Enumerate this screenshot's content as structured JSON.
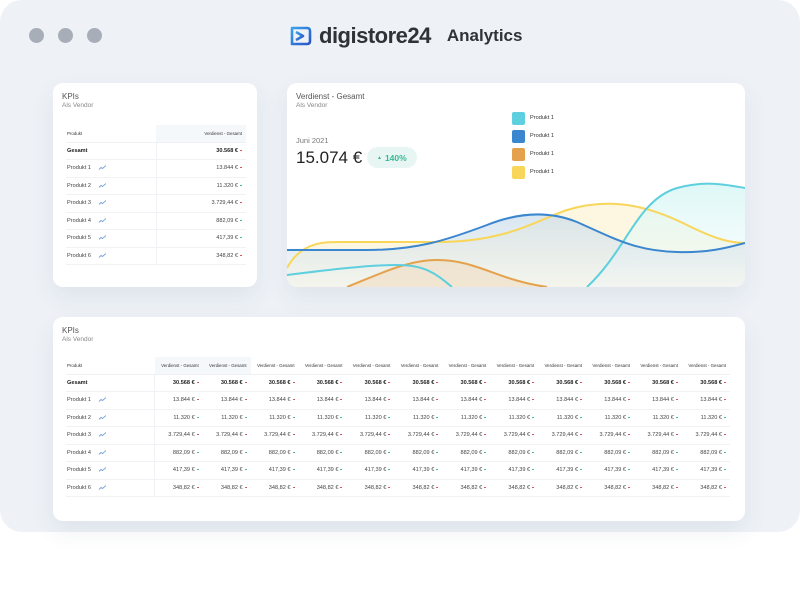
{
  "header": {
    "brand": "digistore24",
    "product": "Analytics",
    "brand_color": "#2f7de1"
  },
  "colors": {
    "up": "#3cc1a0",
    "down": "#e0515a",
    "highlight": "#f5f8fa"
  },
  "kpi_small": {
    "title": "KPIs",
    "subtitle": "Als Vendor",
    "col_product": "Produkt",
    "col_value": "Verdienst - Gesamt",
    "rows": [
      {
        "label": "Gesamt",
        "value": "30.568 €",
        "trend": "down",
        "total": true
      },
      {
        "label": "Produkt 1",
        "value": "13.844 €",
        "trend": "down"
      },
      {
        "label": "Produkt 2",
        "value": "11.320 €",
        "trend": "up"
      },
      {
        "label": "Produkt 3",
        "value": "3.729,44 €",
        "trend": "down"
      },
      {
        "label": "Produkt 4",
        "value": "882,09 €",
        "trend": "up"
      },
      {
        "label": "Produkt 5",
        "value": "417,39 €",
        "trend": "up"
      },
      {
        "label": "Produkt 6",
        "value": "348,82 €",
        "trend": "down"
      }
    ]
  },
  "earnings": {
    "title": "Verdienst - Gesamt",
    "subtitle": "Als Vendor",
    "period": "Juni 2021",
    "amount": "15.074 €",
    "change": "140%",
    "change_direction": "up",
    "legend": [
      {
        "label": "Produkt 1",
        "color": "#5dcfdf"
      },
      {
        "label": "Produkt 1",
        "color": "#3a86cf"
      },
      {
        "label": "Produkt 1",
        "color": "#e4a24d"
      },
      {
        "label": "Produkt 1",
        "color": "#f8d65a"
      }
    ]
  },
  "kpi_large": {
    "title": "KPIs",
    "subtitle": "Als Vendor",
    "col_product": "Produkt",
    "columns": [
      "Verdienst - Gesamt",
      "Verdienst - Gesamt",
      "Verdienst - Gesamt",
      "Verdienst - Gesamt",
      "Verdienst - Gesamt",
      "Verdienst - Gesamt",
      "Verdienst - Gesamt",
      "Verdienst - Gesamt",
      "Verdienst - Gesamt",
      "Verdienst - Gesamt",
      "Verdienst - Gesamt",
      "Verdienst - Gesamt"
    ],
    "rows": [
      {
        "label": "Gesamt",
        "total": true,
        "trend": "down",
        "values": [
          "30.568 €",
          "30.568 €",
          "30.568 €",
          "30.568 €",
          "30.568 €",
          "30.568 €",
          "30.568 €",
          "30.568 €",
          "30.568 €",
          "30.568 €",
          "30.568 €",
          "30.568 €"
        ]
      },
      {
        "label": "Produkt 1",
        "trend": "down",
        "values": [
          "13.844 €",
          "13.844 €",
          "13.844 €",
          "13.844 €",
          "13.844 €",
          "13.844 €",
          "13.844 €",
          "13.844 €",
          "13.844 €",
          "13.844 €",
          "13.844 €",
          "13.844 €"
        ]
      },
      {
        "label": "Produkt 2",
        "trend": "up",
        "values": [
          "11.320 €",
          "11.320 €",
          "11.320 €",
          "11.320 €",
          "11.320 €",
          "11.320 €",
          "11.320 €",
          "11.320 €",
          "11.320 €",
          "11.320 €",
          "11.320 €",
          "11.320 €"
        ]
      },
      {
        "label": "Produkt 3",
        "trend": "down",
        "values": [
          "3.729,44 €",
          "3.729,44 €",
          "3.729,44 €",
          "3.729,44 €",
          "3.729,44 €",
          "3.729,44 €",
          "3.729,44 €",
          "3.729,44 €",
          "3.729,44 €",
          "3.729,44 €",
          "3.729,44 €",
          "3.729,44 €"
        ]
      },
      {
        "label": "Produkt 4",
        "trend": "up",
        "values": [
          "882,09 €",
          "882,09 €",
          "882,09 €",
          "882,09 €",
          "882,09 €",
          "882,09 €",
          "882,09 €",
          "882,09 €",
          "882,09 €",
          "882,09 €",
          "882,09 €",
          "882,09 €"
        ]
      },
      {
        "label": "Produkt 5",
        "trend": "up",
        "values": [
          "417,39 €",
          "417,39 €",
          "417,39 €",
          "417,39 €",
          "417,39 €",
          "417,39 €",
          "417,39 €",
          "417,39 €",
          "417,39 €",
          "417,39 €",
          "417,39 €",
          "417,39 €"
        ]
      },
      {
        "label": "Produkt 6",
        "trend": "down",
        "values": [
          "348,82 €",
          "348,82 €",
          "348,82 €",
          "348,82 €",
          "348,82 €",
          "348,82 €",
          "348,82 €",
          "348,82 €",
          "348,82 €",
          "348,82 €",
          "348,82 €",
          "348,82 €"
        ]
      }
    ]
  }
}
